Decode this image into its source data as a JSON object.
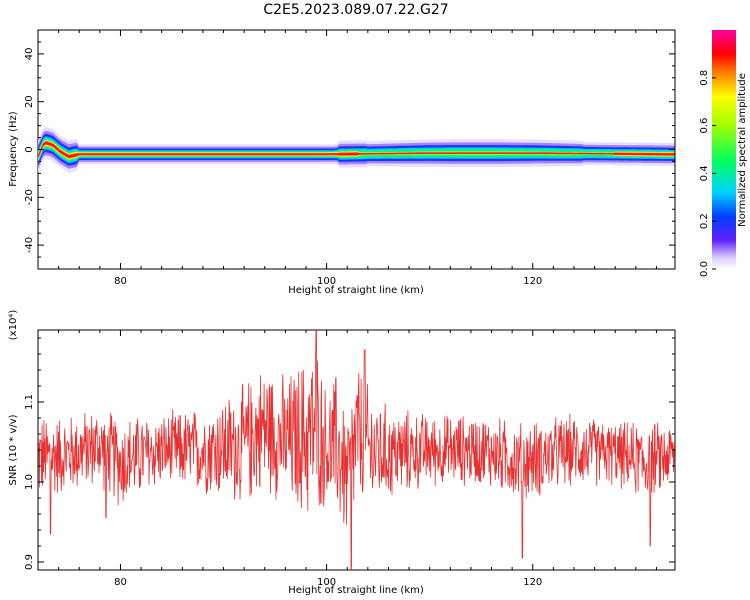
{
  "title": "C2E5.2023.089.07.22.G27",
  "chart_data": [
    {
      "type": "heatmap",
      "xlabel": "Height of straight line (km)",
      "ylabel": "Frequency (Hz)",
      "xlim": [
        72.0,
        133.8
      ],
      "ylim": [
        -50,
        50
      ],
      "xticks": [
        80,
        100,
        120
      ],
      "yticks": [
        40,
        20,
        0,
        -20,
        -40
      ],
      "ridge": {
        "note_free": true,
        "points": [
          {
            "x": 72.0,
            "f": -3
          },
          {
            "x": 72.6,
            "f": 3
          },
          {
            "x": 73.4,
            "f": 2
          },
          {
            "x": 74.2,
            "f": -1
          },
          {
            "x": 75.0,
            "f": -3
          },
          {
            "x": 76.0,
            "f": -2
          },
          {
            "x": 78.0,
            "f": -2
          },
          {
            "x": 100.0,
            "f": -2
          },
          {
            "x": 110.0,
            "f": -1.5
          },
          {
            "x": 120.0,
            "f": -1.5
          },
          {
            "x": 133.0,
            "f": -2
          }
        ]
      },
      "colorbar": {
        "label": "Normalized spectral amplitude",
        "ticks": [
          "0.0",
          "0.2",
          "0.4",
          "0.6",
          "0.8"
        ],
        "range": [
          0.0,
          1.0
        ]
      }
    },
    {
      "type": "line",
      "xlabel": "Height of straight line (km)",
      "ylabel": "SNR (10 * v/v)",
      "scale_label": "(x10⁴)",
      "xlim": [
        72.0,
        133.8
      ],
      "ylim": [
        0.89,
        1.19
      ],
      "xticks": [
        80,
        100,
        120
      ],
      "yticks": [
        0.9,
        1.0,
        1.1
      ],
      "ytick_labels": [
        "0.9",
        "1.0",
        "1.1"
      ],
      "series": [
        {
          "color": "#e83030",
          "x_start": 72.0,
          "x_end": 133.8,
          "envelope": [
            {
              "x": 72,
              "lo": 0.97,
              "hi": 1.09
            },
            {
              "x": 75,
              "lo": 0.98,
              "hi": 1.09
            },
            {
              "x": 78,
              "lo": 0.99,
              "hi": 1.1
            },
            {
              "x": 80,
              "lo": 0.96,
              "hi": 1.09
            },
            {
              "x": 84,
              "lo": 0.99,
              "hi": 1.09
            },
            {
              "x": 88,
              "lo": 0.98,
              "hi": 1.1
            },
            {
              "x": 92,
              "lo": 0.96,
              "hi": 1.13
            },
            {
              "x": 94,
              "lo": 0.98,
              "hi": 1.16
            },
            {
              "x": 96,
              "lo": 0.96,
              "hi": 1.14
            },
            {
              "x": 98,
              "lo": 0.94,
              "hi": 1.17
            },
            {
              "x": 99,
              "lo": 0.95,
              "hi": 1.19
            },
            {
              "x": 100,
              "lo": 0.96,
              "hi": 1.12
            },
            {
              "x": 101,
              "lo": 0.94,
              "hi": 1.15
            },
            {
              "x": 102,
              "lo": 0.91,
              "hi": 1.1
            },
            {
              "x": 103,
              "lo": 0.96,
              "hi": 1.16
            },
            {
              "x": 104,
              "lo": 0.95,
              "hi": 1.13
            },
            {
              "x": 106,
              "lo": 0.97,
              "hi": 1.1
            },
            {
              "x": 110,
              "lo": 0.99,
              "hi": 1.09
            },
            {
              "x": 115,
              "lo": 0.99,
              "hi": 1.09
            },
            {
              "x": 119,
              "lo": 0.97,
              "hi": 1.08
            },
            {
              "x": 124,
              "lo": 0.99,
              "hi": 1.09
            },
            {
              "x": 128,
              "lo": 0.99,
              "hi": 1.08
            },
            {
              "x": 131,
              "lo": 0.97,
              "hi": 1.08
            },
            {
              "x": 133.8,
              "lo": 0.99,
              "hi": 1.08
            }
          ],
          "spikes": [
            {
              "x": 73.2,
              "y": 0.935
            },
            {
              "x": 78.6,
              "y": 0.955
            },
            {
              "x": 102.4,
              "y": 0.89
            },
            {
              "x": 99.0,
              "y": 1.19
            },
            {
              "x": 103.7,
              "y": 1.165
            },
            {
              "x": 119.0,
              "y": 0.905
            },
            {
              "x": 131.4,
              "y": 0.92
            }
          ]
        }
      ]
    }
  ]
}
